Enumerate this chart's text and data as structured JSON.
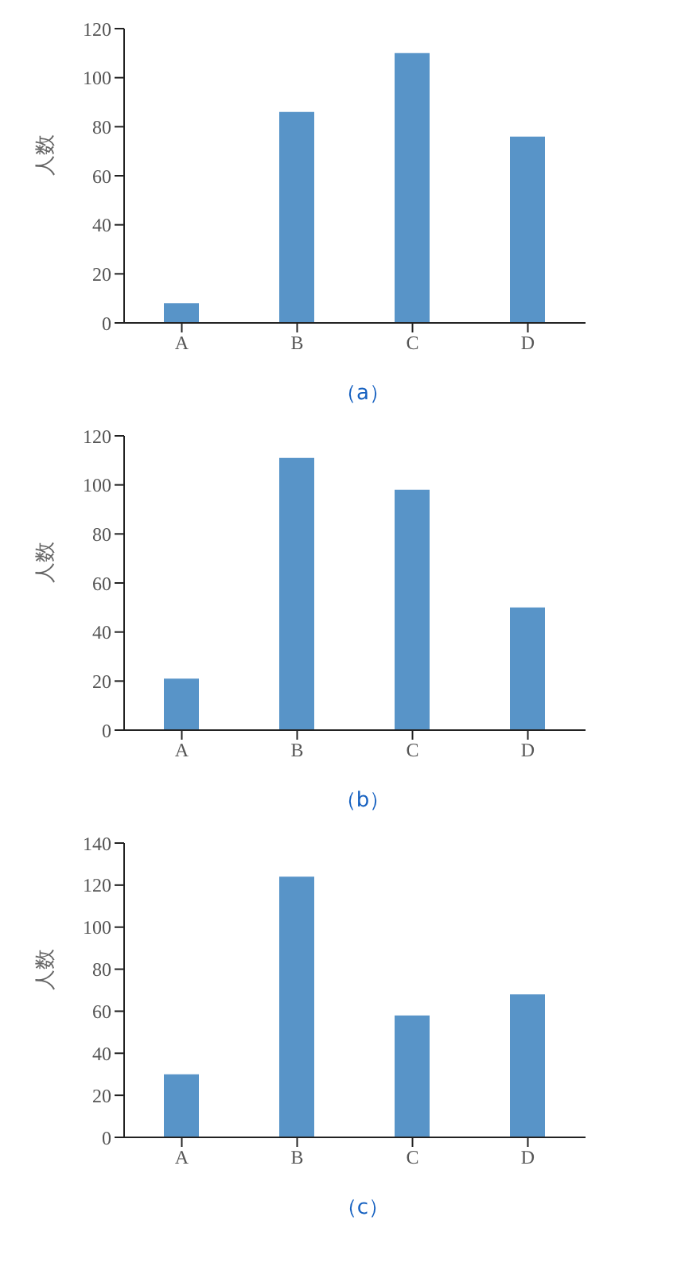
{
  "chart_data": [
    {
      "type": "bar",
      "categories": [
        "A",
        "B",
        "C",
        "D"
      ],
      "values": [
        8,
        86,
        110,
        76
      ],
      "color": "#5894c8",
      "ylabel": "人数",
      "ylim": [
        0,
        120
      ],
      "yticks": [
        0,
        20,
        40,
        60,
        80,
        100,
        120
      ],
      "grid": false,
      "legend": false,
      "annotations": [
        "（a）"
      ]
    },
    {
      "type": "bar",
      "categories": [
        "A",
        "B",
        "C",
        "D"
      ],
      "values": [
        21,
        111,
        98,
        50
      ],
      "color": "#5894c8",
      "ylabel": "人数",
      "ylim": [
        0,
        120
      ],
      "yticks": [
        0,
        20,
        40,
        60,
        80,
        100,
        120
      ],
      "grid": false,
      "legend": false,
      "annotations": [
        "（b）"
      ]
    },
    {
      "type": "bar",
      "categories": [
        "A",
        "B",
        "C",
        "D"
      ],
      "values": [
        30,
        124,
        58,
        68
      ],
      "color": "#5894c8",
      "ylabel": "人数",
      "ylim": [
        0,
        140
      ],
      "yticks": [
        0,
        20,
        40,
        60,
        80,
        100,
        120,
        140
      ],
      "grid": false,
      "legend": false,
      "annotations": [
        "（c）"
      ]
    }
  ]
}
